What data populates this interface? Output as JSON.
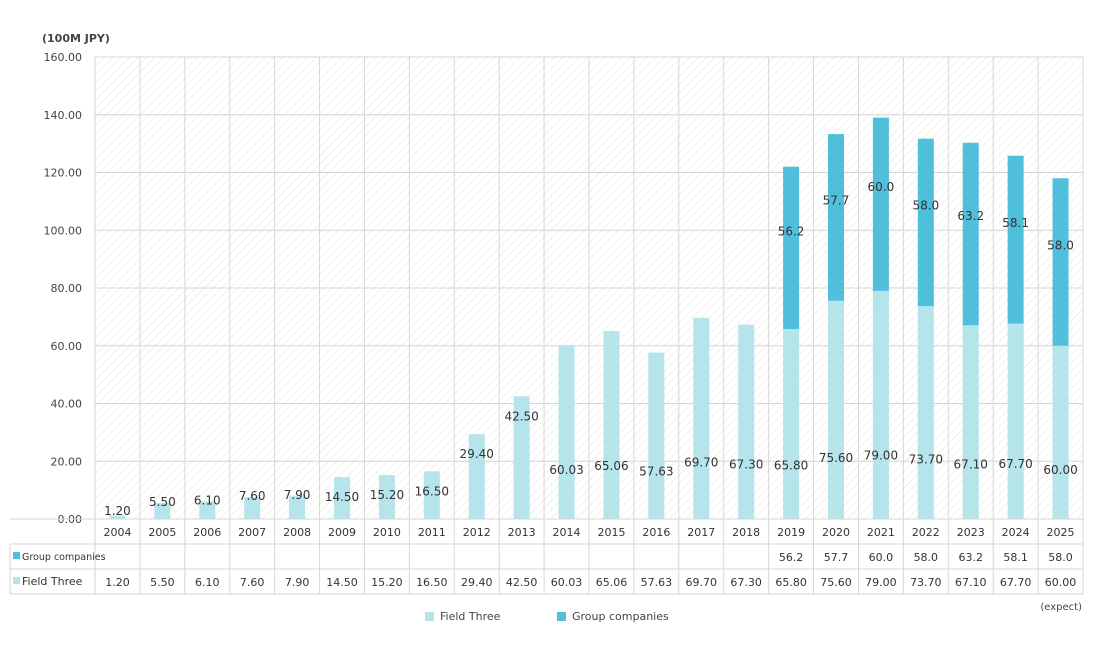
{
  "chart_data": {
    "type": "bar",
    "stacked": true,
    "unit_label": "(100M JPY)",
    "categories": [
      "2004",
      "2005",
      "2006",
      "2007",
      "2008",
      "2009",
      "2010",
      "2011",
      "2012",
      "2013",
      "2014",
      "2015",
      "2016",
      "2017",
      "2018",
      "2019",
      "2020",
      "2021",
      "2022",
      "2023",
      "2024",
      "2025"
    ],
    "ylim": [
      0,
      160
    ],
    "yticks": [
      "0.00",
      "20.00",
      "40.00",
      "60.00",
      "80.00",
      "100.00",
      "120.00",
      "140.00",
      "160.00"
    ],
    "series": [
      {
        "name": "Field Three",
        "color": "#b5e4ea",
        "values": [
          1.2,
          5.5,
          6.1,
          7.6,
          7.9,
          14.5,
          15.2,
          16.5,
          29.4,
          42.5,
          60.03,
          65.06,
          57.63,
          69.7,
          67.3,
          65.8,
          75.6,
          79.0,
          73.7,
          67.1,
          67.7,
          60.0
        ],
        "labels": [
          "1.20",
          "5.50",
          "6.10",
          "7.60",
          "7.90",
          "14.50",
          "15.20",
          "16.50",
          "29.40",
          "42.50",
          "60.03",
          "65.06",
          "57.63",
          "69.70",
          "67.30",
          "65.80",
          "75.60",
          "79.00",
          "73.70",
          "67.10",
          "67.70",
          "60.00"
        ]
      },
      {
        "name": "Group companies",
        "color": "#4fbfdb",
        "values": [
          null,
          null,
          null,
          null,
          null,
          null,
          null,
          null,
          null,
          null,
          null,
          null,
          null,
          null,
          null,
          56.2,
          57.7,
          60.0,
          58.0,
          63.2,
          58.1,
          58.0
        ],
        "labels": [
          "",
          "",
          "",
          "",
          "",
          "",
          "",
          "",
          "",
          "",
          "",
          "",
          "",
          "",
          "",
          "56.2",
          "57.7",
          "60.0",
          "58.0",
          "63.2",
          "58.1",
          "58.0"
        ]
      }
    ],
    "table_row_order": [
      "Group companies",
      "Field Three"
    ],
    "grid": true,
    "legend_position": "bottom",
    "footnote": "(expect)"
  }
}
